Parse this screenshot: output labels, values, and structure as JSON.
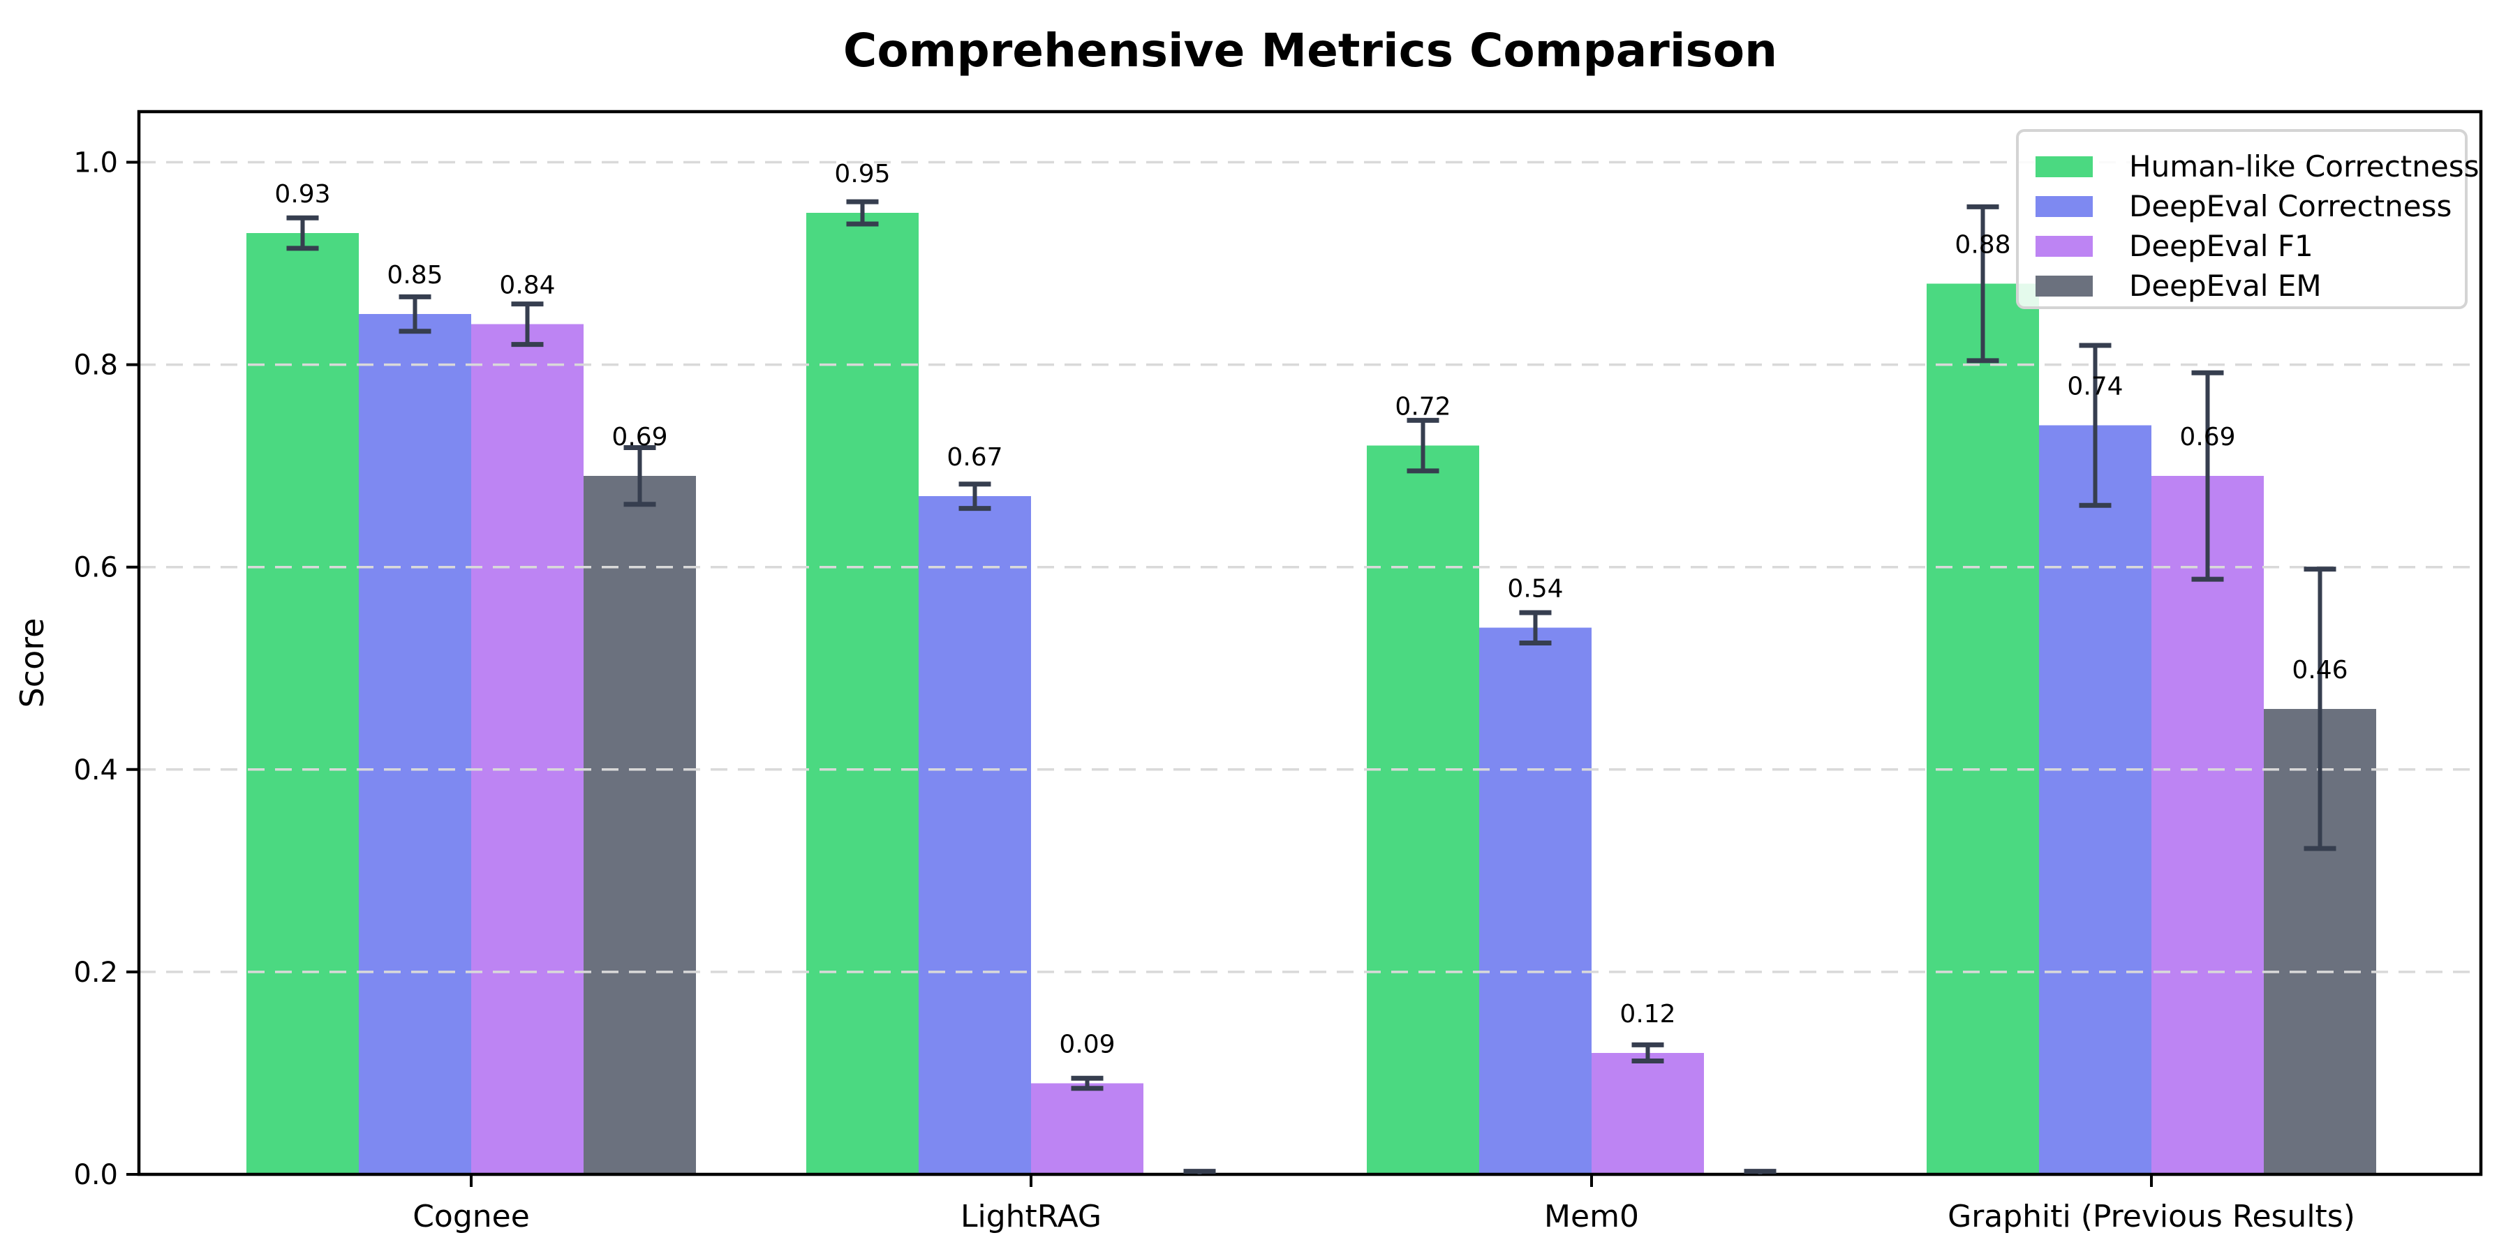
{
  "chart_data": {
    "type": "bar",
    "title": "Comprehensive Metrics Comparison",
    "ylabel": "Score",
    "xlabel": "",
    "categories": [
      "Cognee",
      "LightRAG",
      "Mem0",
      "Graphiti (Previous Results)"
    ],
    "ylim": [
      0,
      1.05
    ],
    "ytick_labels": [
      "0.0",
      "0.2",
      "0.4",
      "0.6",
      "0.8",
      "1.0"
    ],
    "grid": {
      "axis": "y",
      "style": "dashed",
      "color": "#d9d9d9"
    },
    "legend_position": "upper right",
    "error_bar_color": "#363e4f",
    "series": [
      {
        "name": "Human-like Correctness",
        "color": "#4bd981",
        "values": [
          0.93,
          0.95,
          0.72,
          0.88
        ],
        "errors": [
          0.015,
          0.011,
          0.025,
          0.076
        ],
        "labels": [
          "0.93",
          "0.95",
          "0.72",
          "0.88"
        ]
      },
      {
        "name": "DeepEval Correctness",
        "color": "#7e89f1",
        "values": [
          0.85,
          0.67,
          0.54,
          0.74
        ],
        "errors": [
          0.017,
          0.012,
          0.015,
          0.079
        ],
        "labels": [
          "0.85",
          "0.67",
          "0.54",
          "0.74"
        ]
      },
      {
        "name": "DeepEval F1",
        "color": "#bd84f3",
        "values": [
          0.84,
          0.09,
          0.12,
          0.69
        ],
        "errors": [
          0.02,
          0.005,
          0.008,
          0.102
        ],
        "labels": [
          "0.84",
          "0.09",
          "0.12",
          "0.69"
        ]
      },
      {
        "name": "DeepEval EM",
        "color": "#6b717e",
        "values": [
          0.69,
          0.0,
          0.0,
          0.46
        ],
        "errors": [
          0.028,
          0.003,
          0.003,
          0.138
        ],
        "labels": [
          "0.69",
          null,
          null,
          "0.46"
        ]
      }
    ]
  }
}
